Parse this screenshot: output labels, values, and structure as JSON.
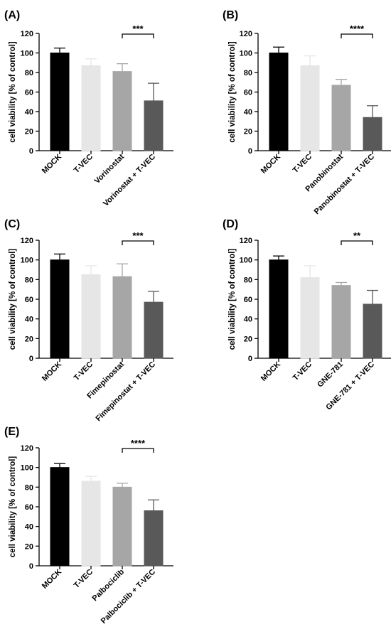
{
  "chart_data": [
    {
      "type": "bar",
      "panel": "(A)",
      "ylabel": "cell viability [% of control]",
      "ylim": [
        0,
        120
      ],
      "yticks": [
        "0",
        "20",
        "40",
        "60",
        "80",
        "100",
        "120"
      ],
      "categories": [
        "MOCK",
        "T-VEC",
        "Vorinostat",
        "Vorinostat + T-VEC"
      ],
      "values": [
        100,
        87,
        81,
        51
      ],
      "errors": [
        5,
        7,
        8,
        18
      ],
      "colors": [
        "#000000",
        "#e6e6e6",
        "#a6a6a6",
        "#595959"
      ],
      "significance": {
        "label": "***",
        "from": 2,
        "to": 3
      }
    },
    {
      "type": "bar",
      "panel": "(B)",
      "ylabel": "cell viability [% of control]",
      "ylim": [
        0,
        120
      ],
      "yticks": [
        "0",
        "20",
        "40",
        "60",
        "80",
        "100",
        "120"
      ],
      "categories": [
        "MOCK",
        "T-VEC",
        "Panobinostat",
        "Panobinostat + T-VEC"
      ],
      "values": [
        100,
        87,
        67,
        34
      ],
      "errors": [
        6,
        10,
        6,
        12
      ],
      "colors": [
        "#000000",
        "#e6e6e6",
        "#a6a6a6",
        "#595959"
      ],
      "significance": {
        "label": "****",
        "from": 2,
        "to": 3
      }
    },
    {
      "type": "bar",
      "panel": "(C)",
      "ylabel": "cell viability [% of control]",
      "ylim": [
        0,
        120
      ],
      "yticks": [
        "0",
        "20",
        "40",
        "60",
        "80",
        "100",
        "120"
      ],
      "categories": [
        "MOCK",
        "T-VEC",
        "Fimepinostat",
        "Fimepinostat + T-VEC"
      ],
      "values": [
        100,
        85,
        83,
        57
      ],
      "errors": [
        6,
        9,
        13,
        11
      ],
      "colors": [
        "#000000",
        "#e6e6e6",
        "#a6a6a6",
        "#595959"
      ],
      "significance": {
        "label": "***",
        "from": 2,
        "to": 3
      }
    },
    {
      "type": "bar",
      "panel": "(D)",
      "ylabel": "cell viability [% of control]",
      "ylim": [
        0,
        120
      ],
      "yticks": [
        "0",
        "20",
        "40",
        "60",
        "80",
        "100",
        "120"
      ],
      "categories": [
        "MOCK",
        "T-VEC",
        "GNE-781",
        "GNE-781 + T-VEC"
      ],
      "values": [
        100,
        82,
        74,
        55
      ],
      "errors": [
        4,
        12,
        3,
        14
      ],
      "colors": [
        "#000000",
        "#e6e6e6",
        "#a6a6a6",
        "#595959"
      ],
      "significance": {
        "label": "**",
        "from": 2,
        "to": 3
      }
    },
    {
      "type": "bar",
      "panel": "(E)",
      "ylabel": "cell viability [% of control]",
      "ylim": [
        0,
        120
      ],
      "yticks": [
        "0",
        "20",
        "40",
        "60",
        "80",
        "100",
        "120"
      ],
      "categories": [
        "MOCK",
        "T-VEC",
        "Palbociclib",
        "Palbociclib + T-VEC"
      ],
      "values": [
        100,
        86,
        80,
        56
      ],
      "errors": [
        4,
        5,
        4,
        11
      ],
      "colors": [
        "#000000",
        "#e6e6e6",
        "#a6a6a6",
        "#595959"
      ],
      "significance": {
        "label": "****",
        "from": 2,
        "to": 3
      }
    }
  ]
}
